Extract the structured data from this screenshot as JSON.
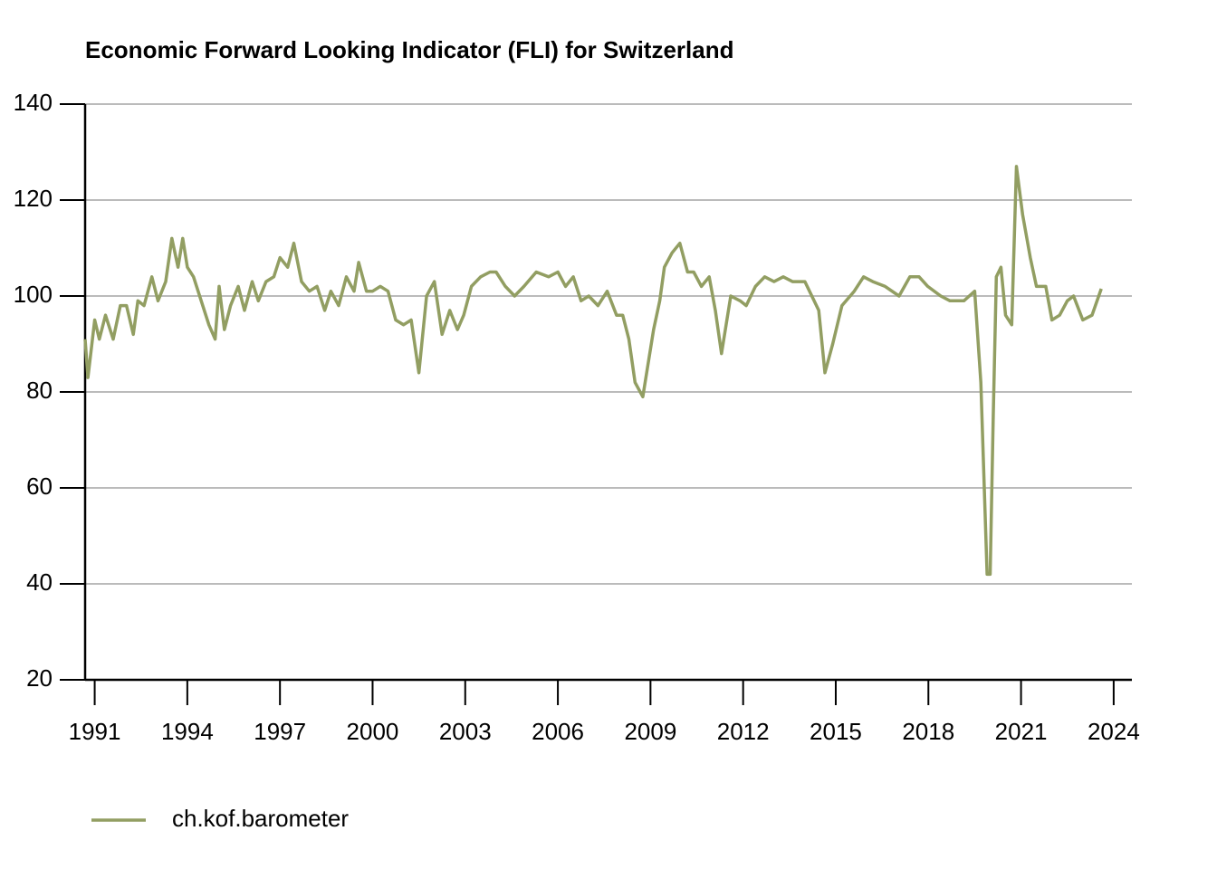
{
  "chart_data": {
    "type": "line",
    "title": "Economic Forward Looking Indicator (FLI) for Switzerland",
    "x": [
      1990.69,
      1990.78,
      1991.0,
      1991.15,
      1991.35,
      1991.6,
      1991.83,
      1992.03,
      1992.25,
      1992.4,
      1992.6,
      1992.85,
      1993.05,
      1993.3,
      1993.5,
      1993.7,
      1993.85,
      1994.0,
      1994.2,
      1994.45,
      1994.7,
      1994.9,
      1995.03,
      1995.2,
      1995.4,
      1995.65,
      1995.85,
      1996.1,
      1996.3,
      1996.55,
      1996.8,
      1997.0,
      1997.25,
      1997.45,
      1997.7,
      1997.95,
      1998.2,
      1998.45,
      1998.65,
      1998.9,
      1999.15,
      1999.4,
      1999.55,
      1999.8,
      2000.0,
      2000.25,
      2000.5,
      2000.75,
      2001.0,
      2001.25,
      2001.5,
      2001.75,
      2002.0,
      2002.25,
      2002.5,
      2002.75,
      2002.95,
      2003.2,
      2003.5,
      2003.8,
      2004.0,
      2004.3,
      2004.6,
      2004.9,
      2005.3,
      2005.7,
      2006.0,
      2006.25,
      2006.5,
      2006.75,
      2007.0,
      2007.3,
      2007.6,
      2007.9,
      2008.1,
      2008.3,
      2008.5,
      2008.75,
      2008.9,
      2009.1,
      2009.3,
      2009.45,
      2009.7,
      2009.95,
      2010.2,
      2010.4,
      2010.65,
      2010.9,
      2011.1,
      2011.3,
      2011.6,
      2011.9,
      2012.1,
      2012.4,
      2012.7,
      2013.0,
      2013.3,
      2013.6,
      2014.0,
      2014.45,
      2014.65,
      2014.9,
      2015.2,
      2015.6,
      2015.9,
      2016.2,
      2016.6,
      2017.05,
      2017.4,
      2017.7,
      2017.98,
      2018.4,
      2018.7,
      2019.15,
      2019.5,
      2019.7,
      2019.9,
      2020.0,
      2020.1,
      2020.2,
      2020.35,
      2020.5,
      2020.7,
      2020.85,
      2021.05,
      2021.3,
      2021.5,
      2021.8,
      2022.0,
      2022.25,
      2022.5,
      2022.7,
      2023.0,
      2023.3,
      2023.6
    ],
    "series": [
      {
        "name": "ch.kof.barometer",
        "color": "#929e62",
        "values": [
          91,
          83,
          95,
          91,
          96,
          91,
          98,
          98,
          92,
          99,
          98,
          104,
          99,
          103,
          112,
          106,
          112,
          106,
          104,
          99,
          94,
          91,
          102,
          93,
          98,
          102,
          97,
          103,
          99,
          103,
          104,
          108,
          106,
          111,
          103,
          101,
          102,
          97,
          101,
          98,
          104,
          101,
          107,
          101,
          101,
          102,
          101,
          95,
          94,
          95,
          84,
          100,
          103,
          92,
          97,
          93,
          96,
          102,
          104,
          105,
          105,
          102,
          100,
          102,
          105,
          104,
          105,
          102,
          104,
          99,
          100,
          98,
          101,
          96,
          96,
          91,
          82,
          79,
          85,
          93,
          99,
          106,
          109,
          111,
          105,
          105,
          102,
          104,
          97,
          88,
          100,
          99,
          98,
          102,
          104,
          103,
          104,
          103,
          103,
          97,
          84,
          90,
          98,
          101,
          104,
          103,
          102,
          100,
          104,
          104,
          102,
          100,
          99,
          99,
          101,
          82,
          42,
          42,
          75,
          104,
          106,
          96,
          94,
          127,
          117,
          108,
          102,
          102,
          95,
          96,
          99,
          100,
          95,
          96,
          101.5
        ]
      }
    ],
    "xlim": [
      1990.69,
      2024.59
    ],
    "xticks": [
      1991,
      1994,
      1997,
      2000,
      2003,
      2006,
      2009,
      2012,
      2015,
      2018,
      2021,
      2024
    ],
    "ylim": [
      20,
      140
    ],
    "yticks": [
      20,
      40,
      60,
      80,
      100,
      120,
      140
    ],
    "grid": true
  }
}
